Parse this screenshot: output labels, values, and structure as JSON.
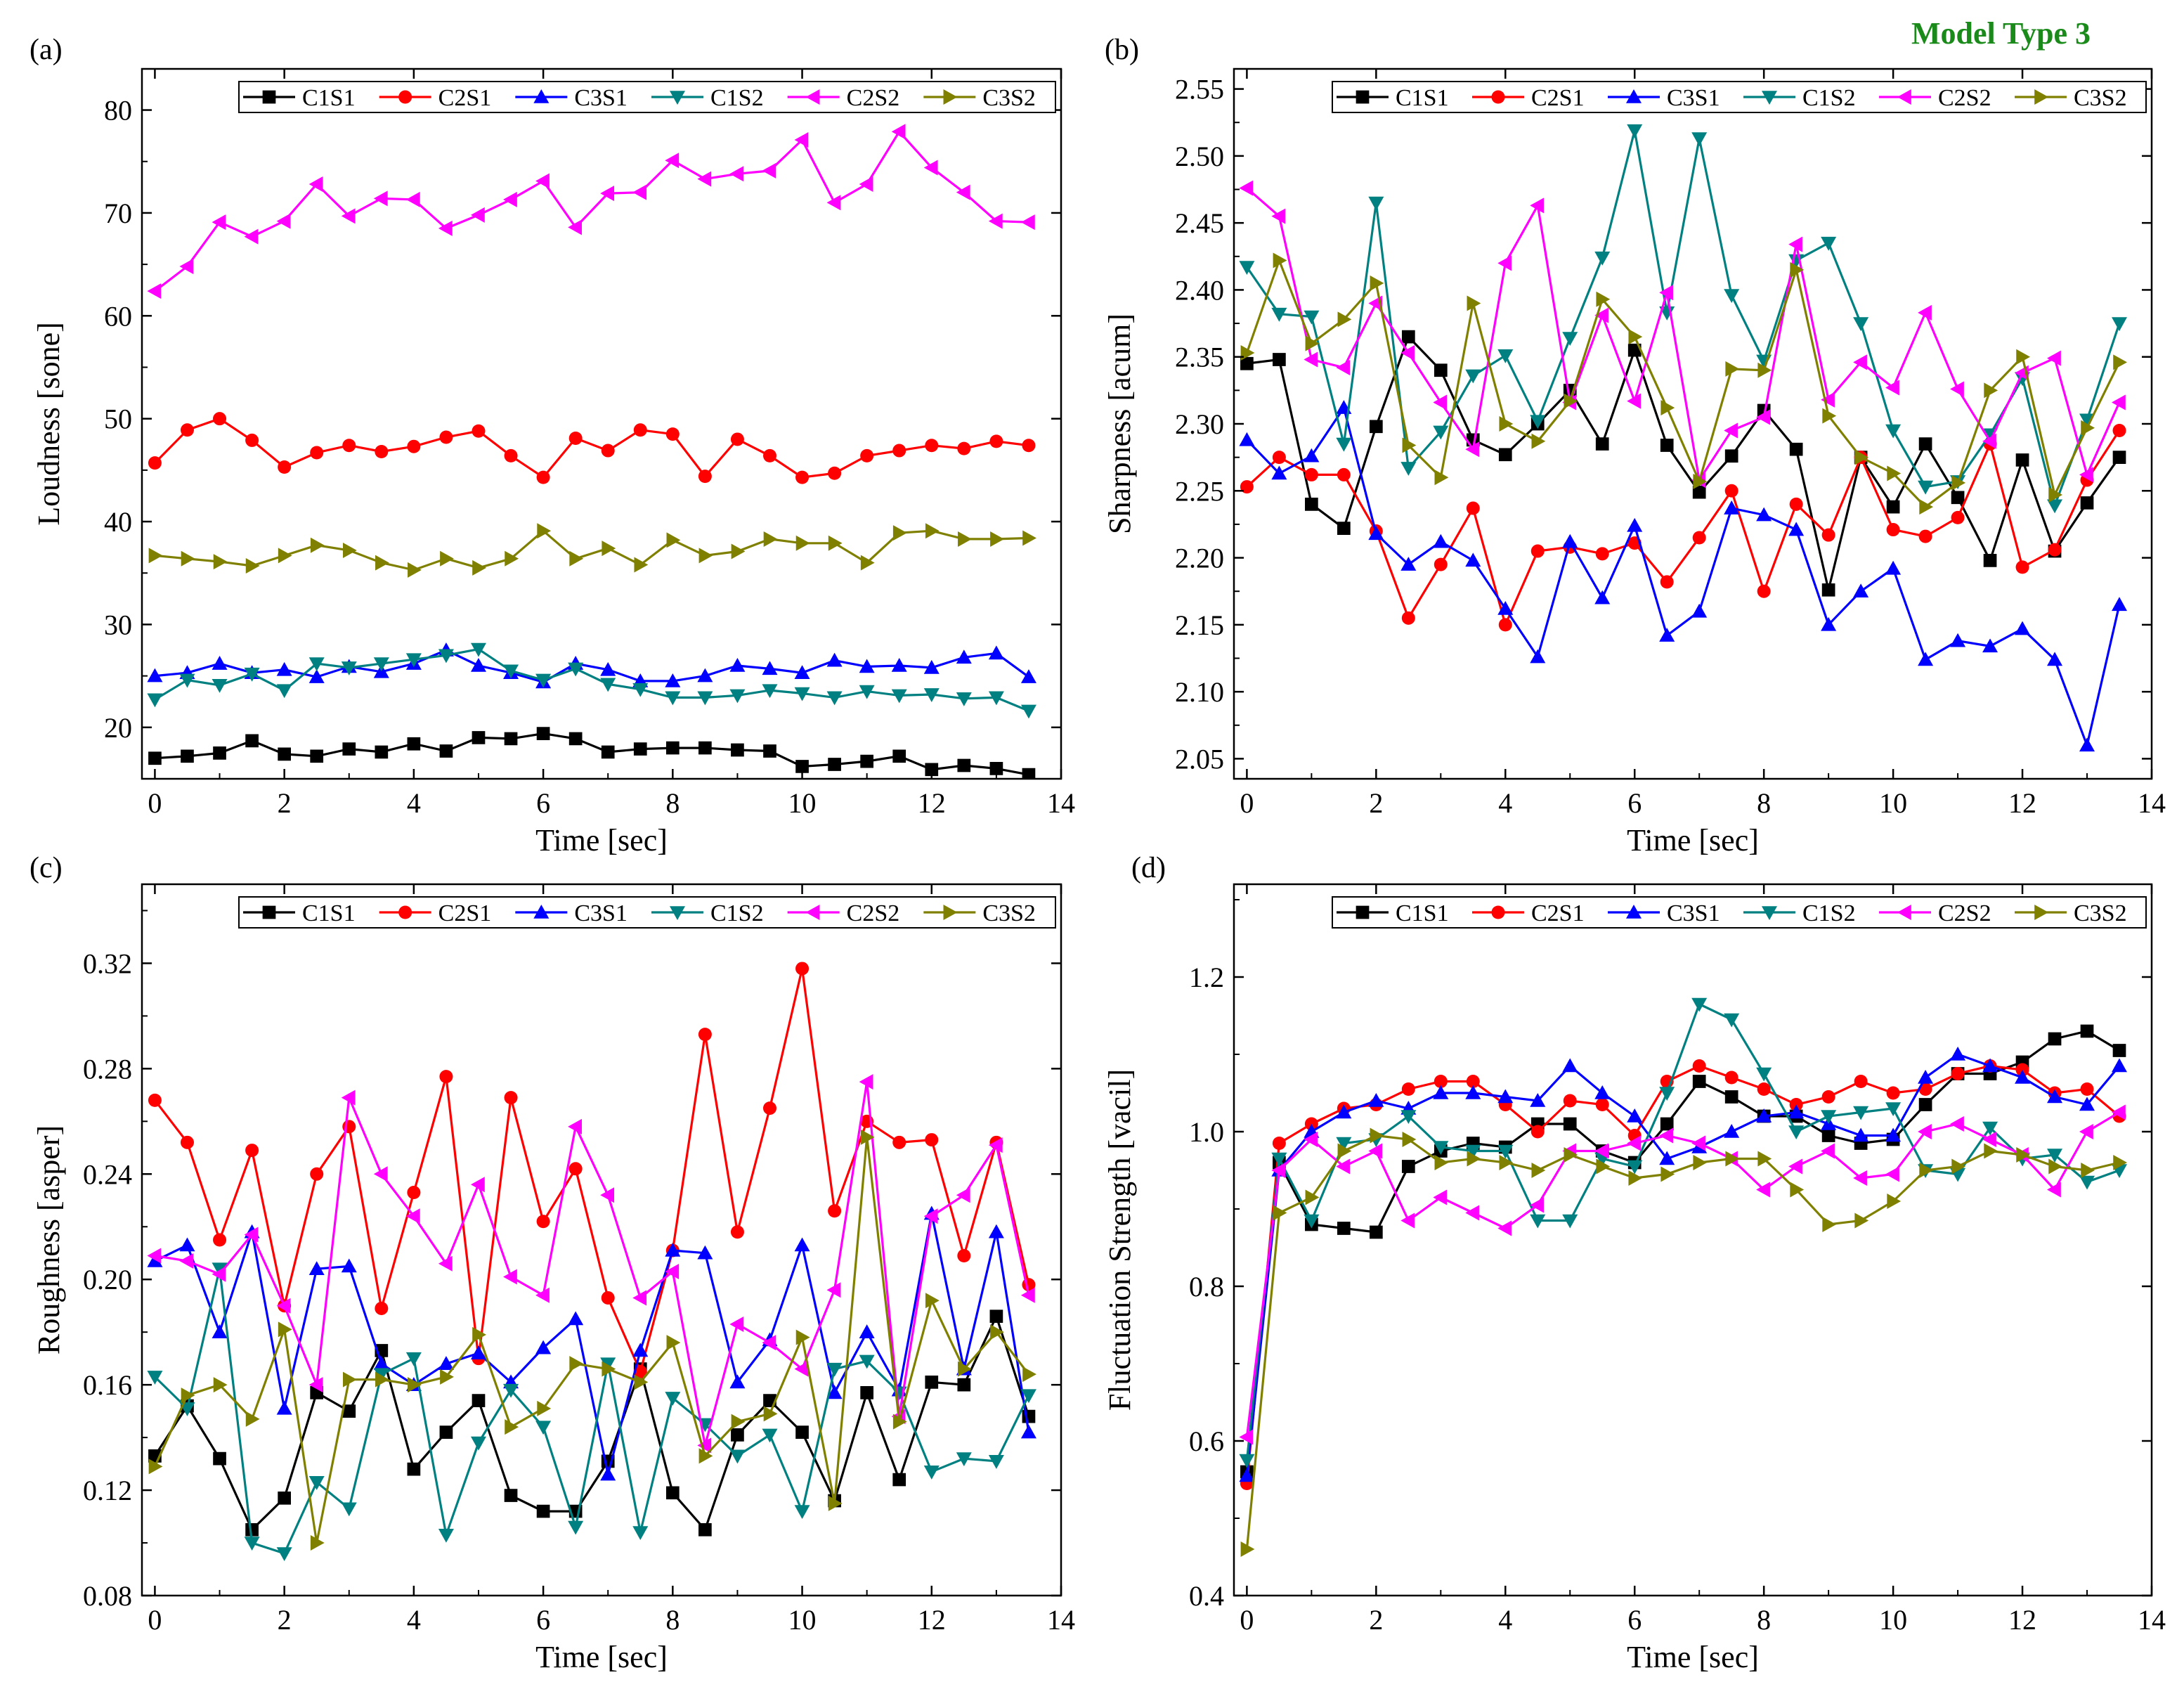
{
  "figure_label": "Model Type 3",
  "colors": {
    "C1S1": "#000000",
    "C2S1": "#ff0000",
    "C3S1": "#0000ff",
    "C1S2": "#008080",
    "C2S2": "#ff00ff",
    "C3S2": "#808000"
  },
  "chart_data": [
    {
      "panel": "(a)",
      "type": "line",
      "ylabel": "Loudness [sone]",
      "xlabel": "Time [sec]",
      "xlim": [
        -0.2,
        14
      ],
      "ylim": [
        15,
        84
      ],
      "xticks": [
        0,
        2,
        4,
        6,
        8,
        10,
        12,
        14
      ],
      "yticks": [
        20,
        30,
        40,
        50,
        60,
        70,
        80
      ],
      "ytick_labels": [
        "20",
        "30",
        "40",
        "50",
        "60",
        "70",
        "80"
      ],
      "legend": "top-right",
      "x": [
        0,
        0.5,
        1,
        1.5,
        2,
        2.5,
        3,
        3.5,
        4,
        4.5,
        5,
        5.5,
        6,
        6.5,
        7,
        7.5,
        8,
        8.5,
        9,
        9.5,
        10,
        10.5,
        11,
        11.5,
        12,
        12.5,
        13,
        13.5
      ],
      "series": [
        {
          "name": "C1S1",
          "marker": "square",
          "values": [
            17.0,
            17.2,
            17.5,
            18.7,
            17.4,
            17.2,
            17.9,
            17.6,
            18.4,
            17.7,
            19.0,
            18.9,
            19.4,
            18.9,
            17.6,
            17.9,
            18.0,
            18.0,
            17.8,
            17.7,
            16.2,
            16.4,
            16.7,
            17.2,
            15.9,
            16.3,
            16.0,
            15.4
          ]
        },
        {
          "name": "C2S1",
          "marker": "circle",
          "values": [
            45.7,
            48.9,
            50.0,
            47.9,
            45.3,
            46.7,
            47.4,
            46.8,
            47.3,
            48.2,
            48.8,
            46.4,
            44.3,
            48.1,
            46.9,
            48.9,
            48.5,
            44.4,
            48.0,
            46.4,
            44.3,
            44.7,
            46.4,
            46.9,
            47.4,
            47.1,
            47.8,
            47.4
          ]
        },
        {
          "name": "C3S1",
          "marker": "triangle-up",
          "values": [
            25.0,
            25.3,
            26.2,
            25.3,
            25.6,
            24.9,
            25.9,
            25.4,
            26.2,
            27.5,
            26.0,
            25.3,
            24.4,
            26.2,
            25.6,
            24.5,
            24.5,
            25.0,
            26.0,
            25.7,
            25.3,
            26.5,
            25.9,
            26.0,
            25.8,
            26.8,
            27.2,
            24.9
          ]
        },
        {
          "name": "C1S2",
          "marker": "triangle-down",
          "values": [
            22.7,
            24.6,
            24.1,
            25.2,
            23.6,
            26.2,
            25.8,
            26.2,
            26.6,
            27.0,
            27.6,
            25.5,
            24.6,
            25.7,
            24.2,
            23.7,
            22.9,
            22.9,
            23.1,
            23.6,
            23.3,
            22.9,
            23.5,
            23.1,
            23.2,
            22.8,
            22.9,
            21.6
          ]
        },
        {
          "name": "C2S2",
          "marker": "triangle-left",
          "values": [
            62.4,
            64.8,
            69.1,
            67.7,
            69.2,
            72.8,
            69.7,
            71.4,
            71.3,
            68.5,
            69.8,
            71.3,
            73.1,
            68.6,
            71.9,
            72.0,
            75.1,
            73.3,
            73.8,
            74.1,
            77.1,
            71.0,
            72.8,
            77.9,
            74.4,
            72.0,
            69.2,
            69.1
          ]
        },
        {
          "name": "C3S2",
          "marker": "triangle-right",
          "values": [
            36.7,
            36.4,
            36.1,
            35.7,
            36.7,
            37.7,
            37.2,
            36.0,
            35.3,
            36.4,
            35.5,
            36.4,
            39.1,
            36.4,
            37.4,
            35.8,
            38.2,
            36.7,
            37.1,
            38.3,
            37.9,
            37.9,
            36.0,
            38.9,
            39.1,
            38.3,
            38.3,
            38.4
          ]
        }
      ]
    },
    {
      "panel": "(b)",
      "type": "line",
      "ylabel": "Sharpness [acum]",
      "xlabel": "Time [sec]",
      "xlim": [
        -0.2,
        14
      ],
      "ylim": [
        2.035,
        2.565
      ],
      "xticks": [
        0,
        2,
        4,
        6,
        8,
        10,
        12,
        14
      ],
      "yticks": [
        2.05,
        2.1,
        2.15,
        2.2,
        2.25,
        2.3,
        2.35,
        2.4,
        2.45,
        2.5,
        2.55
      ],
      "ytick_labels": [
        "2.05",
        "2.10",
        "2.15",
        "2.20",
        "2.25",
        "2.30",
        "2.35",
        "2.40",
        "2.45",
        "2.50",
        "2.55"
      ],
      "legend": "top",
      "x": [
        0,
        0.5,
        1,
        1.5,
        2,
        2.5,
        3,
        3.5,
        4,
        4.5,
        5,
        5.5,
        6,
        6.5,
        7,
        7.5,
        8,
        8.5,
        9,
        9.5,
        10,
        10.5,
        11,
        11.5,
        12,
        12.5,
        13,
        13.5
      ],
      "series": [
        {
          "name": "C1S1",
          "marker": "square",
          "values": [
            2.345,
            2.348,
            2.24,
            2.222,
            2.298,
            2.365,
            2.34,
            2.288,
            2.277,
            2.3,
            2.325,
            2.285,
            2.355,
            2.284,
            2.249,
            2.276,
            2.31,
            2.281,
            2.176,
            2.275,
            2.238,
            2.285,
            2.245,
            2.198,
            2.273,
            2.205,
            2.241,
            2.275
          ]
        },
        {
          "name": "C2S1",
          "marker": "circle",
          "values": [
            2.253,
            2.275,
            2.262,
            2.262,
            2.22,
            2.155,
            2.195,
            2.237,
            2.15,
            2.205,
            2.208,
            2.203,
            2.211,
            2.182,
            2.215,
            2.25,
            2.175,
            2.24,
            2.217,
            2.275,
            2.221,
            2.216,
            2.23,
            2.285,
            2.193,
            2.206,
            2.258,
            2.295
          ]
        },
        {
          "name": "C3S1",
          "marker": "triangle-up",
          "values": [
            2.288,
            2.263,
            2.276,
            2.312,
            2.218,
            2.195,
            2.212,
            2.198,
            2.162,
            2.126,
            2.212,
            2.17,
            2.224,
            2.142,
            2.16,
            2.237,
            2.232,
            2.221,
            2.15,
            2.175,
            2.192,
            2.124,
            2.138,
            2.134,
            2.147,
            2.124,
            2.06,
            2.165
          ]
        },
        {
          "name": "C1S2",
          "marker": "triangle-down",
          "values": [
            2.417,
            2.382,
            2.38,
            2.285,
            2.465,
            2.267,
            2.294,
            2.336,
            2.351,
            2.302,
            2.364,
            2.424,
            2.519,
            2.383,
            2.513,
            2.396,
            2.347,
            2.422,
            2.435,
            2.375,
            2.295,
            2.253,
            2.257,
            2.292,
            2.334,
            2.239,
            2.303,
            2.375
          ]
        },
        {
          "name": "C2S2",
          "marker": "triangle-left",
          "values": [
            2.476,
            2.455,
            2.348,
            2.342,
            2.39,
            2.353,
            2.316,
            2.281,
            2.42,
            2.463,
            2.316,
            2.381,
            2.317,
            2.398,
            2.258,
            2.295,
            2.305,
            2.434,
            2.318,
            2.346,
            2.327,
            2.383,
            2.326,
            2.287,
            2.338,
            2.349,
            2.262,
            2.316
          ]
        },
        {
          "name": "C3S2",
          "marker": "triangle-right",
          "values": [
            2.353,
            2.422,
            2.36,
            2.378,
            2.405,
            2.284,
            2.26,
            2.39,
            2.3,
            2.287,
            2.317,
            2.393,
            2.365,
            2.312,
            2.257,
            2.341,
            2.34,
            2.415,
            2.306,
            2.275,
            2.263,
            2.238,
            2.256,
            2.325,
            2.35,
            2.247,
            2.297,
            2.346
          ]
        }
      ]
    },
    {
      "panel": "(c)",
      "type": "line",
      "ylabel": "Roughness [asper]",
      "xlabel": "Time [sec]",
      "xlim": [
        -0.2,
        14
      ],
      "ylim": [
        0.08,
        0.35
      ],
      "xticks": [
        0,
        2,
        4,
        6,
        8,
        10,
        12,
        14
      ],
      "yticks": [
        0.08,
        0.12,
        0.16,
        0.2,
        0.24,
        0.28,
        0.32
      ],
      "ytick_labels": [
        "0.08",
        "0.12",
        "0.16",
        "0.20",
        "0.24",
        "0.28",
        "0.32"
      ],
      "legend": "top-right",
      "x": [
        0,
        0.5,
        1,
        1.5,
        2,
        2.5,
        3,
        3.5,
        4,
        4.5,
        5,
        5.5,
        6,
        6.5,
        7,
        7.5,
        8,
        8.5,
        9,
        9.5,
        10,
        10.5,
        11,
        11.5,
        12,
        12.5,
        13,
        13.5
      ],
      "series": [
        {
          "name": "C1S1",
          "marker": "square",
          "values": [
            0.133,
            0.152,
            0.132,
            0.105,
            0.117,
            0.157,
            0.15,
            0.173,
            0.128,
            0.142,
            0.154,
            0.118,
            0.112,
            0.112,
            0.131,
            0.166,
            0.119,
            0.105,
            0.141,
            0.154,
            0.142,
            0.116,
            0.157,
            0.124,
            0.161,
            0.16,
            0.186,
            0.148
          ]
        },
        {
          "name": "C2S1",
          "marker": "circle",
          "values": [
            0.268,
            0.252,
            0.215,
            0.249,
            0.19,
            0.24,
            0.258,
            0.189,
            0.233,
            0.277,
            0.17,
            0.269,
            0.222,
            0.242,
            0.193,
            0.165,
            0.211,
            0.293,
            0.218,
            0.265,
            0.318,
            0.226,
            0.26,
            0.252,
            0.253,
            0.209,
            0.252,
            0.198
          ]
        },
        {
          "name": "C3S1",
          "marker": "triangle-up",
          "values": [
            0.207,
            0.213,
            0.18,
            0.218,
            0.151,
            0.204,
            0.205,
            0.168,
            0.16,
            0.168,
            0.172,
            0.161,
            0.174,
            0.185,
            0.126,
            0.173,
            0.211,
            0.21,
            0.161,
            0.177,
            0.213,
            0.157,
            0.18,
            0.158,
            0.225,
            0.166,
            0.218,
            0.142
          ]
        },
        {
          "name": "C1S2",
          "marker": "triangle-down",
          "values": [
            0.163,
            0.151,
            0.204,
            0.1,
            0.096,
            0.123,
            0.113,
            0.164,
            0.17,
            0.103,
            0.138,
            0.158,
            0.144,
            0.106,
            0.168,
            0.104,
            0.155,
            0.145,
            0.133,
            0.141,
            0.112,
            0.166,
            0.169,
            0.157,
            0.127,
            0.132,
            0.131,
            0.156
          ]
        },
        {
          "name": "C2S2",
          "marker": "triangle-left",
          "values": [
            0.209,
            0.207,
            0.202,
            0.217,
            0.19,
            0.16,
            0.269,
            0.24,
            0.224,
            0.206,
            0.236,
            0.201,
            0.194,
            0.258,
            0.232,
            0.193,
            0.203,
            0.137,
            0.183,
            0.176,
            0.166,
            0.196,
            0.275,
            0.148,
            0.224,
            0.232,
            0.251,
            0.194
          ]
        },
        {
          "name": "C3S2",
          "marker": "triangle-right",
          "values": [
            0.129,
            0.156,
            0.16,
            0.147,
            0.181,
            0.1,
            0.162,
            0.162,
            0.16,
            0.163,
            0.179,
            0.144,
            0.151,
            0.168,
            0.166,
            0.161,
            0.176,
            0.133,
            0.146,
            0.149,
            0.178,
            0.115,
            0.254,
            0.146,
            0.192,
            0.166,
            0.18,
            0.164
          ]
        }
      ]
    },
    {
      "panel": "(d)",
      "type": "line",
      "ylabel": "Fluctuation Strength [vacil]",
      "xlabel": "Time [sec]",
      "xlim": [
        -0.2,
        14
      ],
      "ylim": [
        0.4,
        1.32
      ],
      "xticks": [
        0,
        2,
        4,
        6,
        8,
        10,
        12,
        14
      ],
      "yticks": [
        0.4,
        0.6,
        0.8,
        1.0,
        1.2
      ],
      "ytick_labels": [
        "0.4",
        "0.6",
        "0.8",
        "1.0",
        "1.2"
      ],
      "legend": "top",
      "x": [
        0,
        0.5,
        1,
        1.5,
        2,
        2.5,
        3,
        3.5,
        4,
        4.5,
        5,
        5.5,
        6,
        6.5,
        7,
        7.5,
        8,
        8.5,
        9,
        9.5,
        10,
        10.5,
        11,
        11.5,
        12,
        12.5,
        13,
        13.5
      ],
      "series": [
        {
          "name": "C1S1",
          "marker": "square",
          "values": [
            0.56,
            0.96,
            0.88,
            0.875,
            0.87,
            0.955,
            0.975,
            0.985,
            0.98,
            1.01,
            1.01,
            0.975,
            0.96,
            1.01,
            1.065,
            1.045,
            1.02,
            1.02,
            0.995,
            0.985,
            0.99,
            1.035,
            1.075,
            1.075,
            1.09,
            1.12,
            1.13,
            1.105
          ]
        },
        {
          "name": "C2S1",
          "marker": "circle",
          "values": [
            0.545,
            0.985,
            1.01,
            1.03,
            1.035,
            1.055,
            1.065,
            1.065,
            1.035,
            1.0,
            1.04,
            1.035,
            0.995,
            1.065,
            1.085,
            1.07,
            1.055,
            1.035,
            1.045,
            1.065,
            1.05,
            1.055,
            1.075,
            1.085,
            1.08,
            1.05,
            1.055,
            1.02
          ]
        },
        {
          "name": "C3S1",
          "marker": "triangle-up",
          "values": [
            0.555,
            0.95,
            1.0,
            1.025,
            1.04,
            1.03,
            1.05,
            1.05,
            1.045,
            1.04,
            1.085,
            1.05,
            1.02,
            0.965,
            0.98,
            1.0,
            1.02,
            1.025,
            1.01,
            0.995,
            0.995,
            1.07,
            1.1,
            1.085,
            1.07,
            1.045,
            1.035,
            1.085
          ]
        },
        {
          "name": "C1S2",
          "marker": "triangle-down",
          "values": [
            0.575,
            0.965,
            0.885,
            0.985,
            0.99,
            1.02,
            0.98,
            0.975,
            0.975,
            0.885,
            0.885,
            0.965,
            0.955,
            1.05,
            1.165,
            1.145,
            1.075,
            1.0,
            1.02,
            1.025,
            1.03,
            0.95,
            0.945,
            1.005,
            0.965,
            0.97,
            0.935,
            0.95
          ]
        },
        {
          "name": "C2S2",
          "marker": "triangle-left",
          "values": [
            0.605,
            0.95,
            0.99,
            0.955,
            0.975,
            0.885,
            0.915,
            0.895,
            0.875,
            0.905,
            0.975,
            0.975,
            0.985,
            0.995,
            0.985,
            0.965,
            0.925,
            0.955,
            0.975,
            0.94,
            0.945,
            1.0,
            1.01,
            0.99,
            0.97,
            0.925,
            1.0,
            1.025
          ]
        },
        {
          "name": "C3S2",
          "marker": "triangle-right",
          "values": [
            0.46,
            0.895,
            0.915,
            0.975,
            0.995,
            0.99,
            0.96,
            0.965,
            0.96,
            0.95,
            0.97,
            0.955,
            0.94,
            0.945,
            0.96,
            0.965,
            0.965,
            0.925,
            0.88,
            0.885,
            0.91,
            0.95,
            0.955,
            0.975,
            0.97,
            0.955,
            0.95,
            0.96
          ]
        }
      ]
    }
  ]
}
